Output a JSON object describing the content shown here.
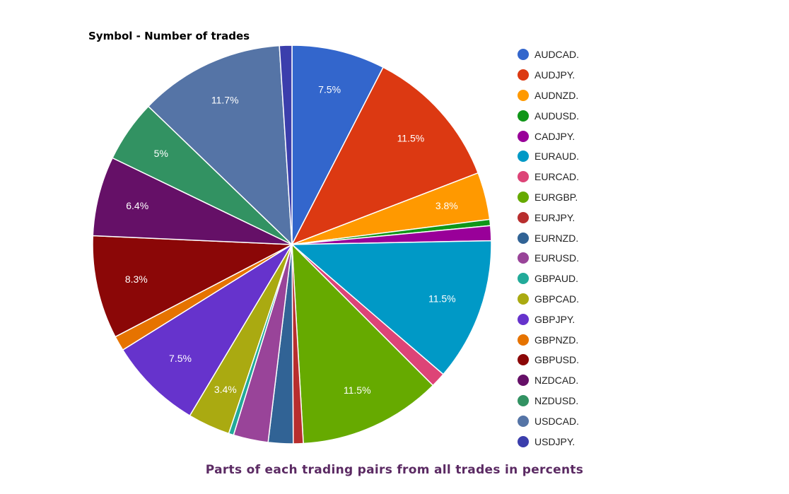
{
  "caption": "Parts of each trading pairs from all trades in percents",
  "chart_data": {
    "type": "pie",
    "title": "Symbol - Number of trades",
    "legend_position": "right",
    "slices": [
      {
        "name": "AUDCAD.",
        "value": 7.5,
        "label": "7.5%",
        "color": "#3366cc"
      },
      {
        "name": "AUDJPY.",
        "value": 11.5,
        "label": "11.5%",
        "color": "#dc3912"
      },
      {
        "name": "AUDNZD.",
        "value": 3.8,
        "label": "3.8%",
        "color": "#ff9900"
      },
      {
        "name": "AUDUSD.",
        "value": 0.5,
        "label": "",
        "color": "#109618"
      },
      {
        "name": "CADJPY.",
        "value": 1.2,
        "label": "",
        "color": "#990099"
      },
      {
        "name": "EURAUD.",
        "value": 11.5,
        "label": "11.5%",
        "color": "#0099c6"
      },
      {
        "name": "EURCAD.",
        "value": 1.2,
        "label": "",
        "color": "#dd4477"
      },
      {
        "name": "EURGBP.",
        "value": 11.5,
        "label": "11.5%",
        "color": "#66aa00"
      },
      {
        "name": "EURJPY.",
        "value": 0.8,
        "label": "",
        "color": "#b82e2e"
      },
      {
        "name": "EURNZD.",
        "value": 2.0,
        "label": "",
        "color": "#316395"
      },
      {
        "name": "EURUSD.",
        "value": 2.8,
        "label": "",
        "color": "#994499"
      },
      {
        "name": "GBPAUD.",
        "value": 0.4,
        "label": "",
        "color": "#22aa99"
      },
      {
        "name": "GBPCAD.",
        "value": 3.4,
        "label": "3.4%",
        "color": "#aaaa11"
      },
      {
        "name": "GBPJPY.",
        "value": 7.5,
        "label": "7.5%",
        "color": "#6633cc"
      },
      {
        "name": "GBPNZD.",
        "value": 1.2,
        "label": "",
        "color": "#e67300"
      },
      {
        "name": "GBPUSD.",
        "value": 8.3,
        "label": "8.3%",
        "color": "#8b0707"
      },
      {
        "name": "NZDCAD.",
        "value": 6.4,
        "label": "6.4%",
        "color": "#651067"
      },
      {
        "name": "NZDUSD.",
        "value": 5.0,
        "label": "5%",
        "color": "#329262"
      },
      {
        "name": "USDCAD.",
        "value": 11.7,
        "label": "11.7%",
        "color": "#5574a6"
      },
      {
        "name": "USDJPY.",
        "value": 1.0,
        "label": "",
        "color": "#3b3eac"
      }
    ]
  }
}
